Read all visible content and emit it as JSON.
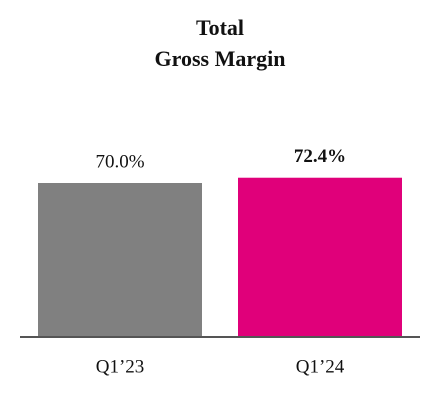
{
  "chart_data": {
    "type": "bar",
    "title": [
      "Total",
      "Gross Margin"
    ],
    "categories": [
      "Q1’23",
      "Q1’24"
    ],
    "values": [
      70.0,
      72.4
    ],
    "value_labels": [
      "70.0%",
      "72.4%"
    ],
    "colors": [
      "#808080",
      "#e0007a"
    ]
  }
}
